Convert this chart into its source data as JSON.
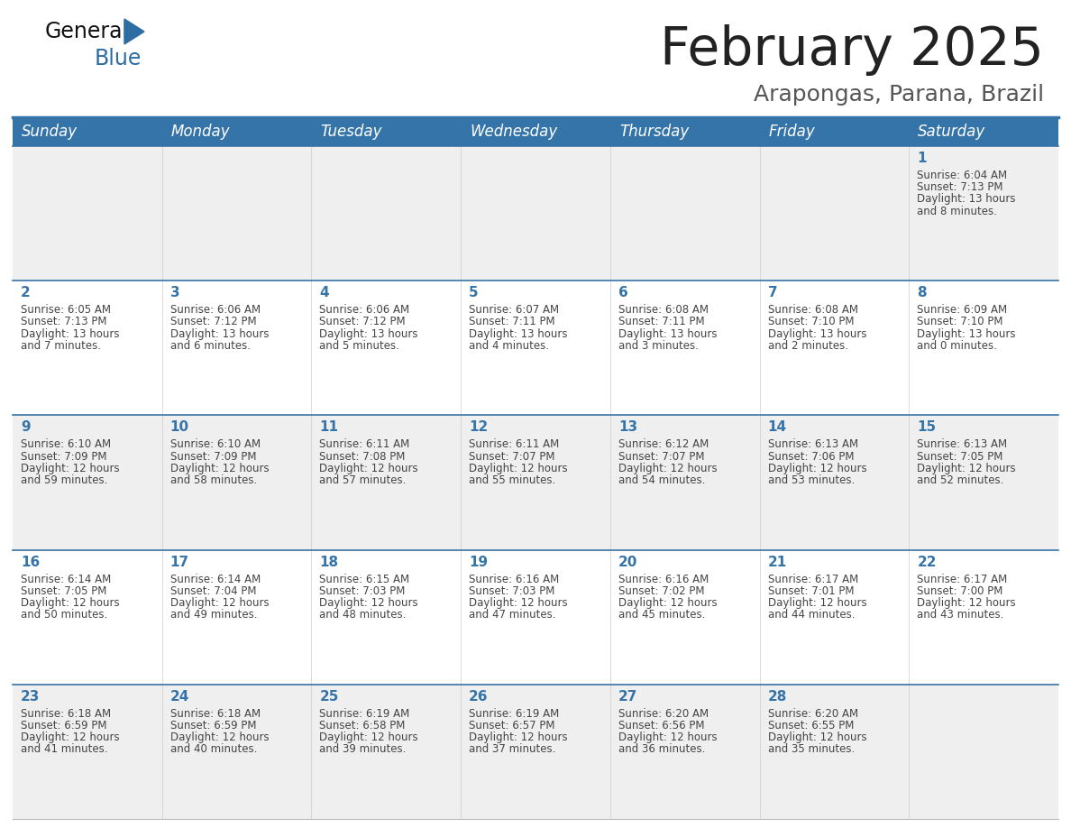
{
  "title": "February 2025",
  "subtitle": "Arapongas, Parana, Brazil",
  "header_color": "#3574a8",
  "header_text_color": "#ffffff",
  "cell_bg_even": "#efefef",
  "cell_bg_odd": "#ffffff",
  "day_headers": [
    "Sunday",
    "Monday",
    "Tuesday",
    "Wednesday",
    "Thursday",
    "Friday",
    "Saturday"
  ],
  "days": [
    {
      "day": 1,
      "col": 6,
      "row": 0,
      "sunrise": "6:04 AM",
      "sunset": "7:13 PM",
      "daylight": "13 hours and 8 minutes."
    },
    {
      "day": 2,
      "col": 0,
      "row": 1,
      "sunrise": "6:05 AM",
      "sunset": "7:13 PM",
      "daylight": "13 hours and 7 minutes."
    },
    {
      "day": 3,
      "col": 1,
      "row": 1,
      "sunrise": "6:06 AM",
      "sunset": "7:12 PM",
      "daylight": "13 hours and 6 minutes."
    },
    {
      "day": 4,
      "col": 2,
      "row": 1,
      "sunrise": "6:06 AM",
      "sunset": "7:12 PM",
      "daylight": "13 hours and 5 minutes."
    },
    {
      "day": 5,
      "col": 3,
      "row": 1,
      "sunrise": "6:07 AM",
      "sunset": "7:11 PM",
      "daylight": "13 hours and 4 minutes."
    },
    {
      "day": 6,
      "col": 4,
      "row": 1,
      "sunrise": "6:08 AM",
      "sunset": "7:11 PM",
      "daylight": "13 hours and 3 minutes."
    },
    {
      "day": 7,
      "col": 5,
      "row": 1,
      "sunrise": "6:08 AM",
      "sunset": "7:10 PM",
      "daylight": "13 hours and 2 minutes."
    },
    {
      "day": 8,
      "col": 6,
      "row": 1,
      "sunrise": "6:09 AM",
      "sunset": "7:10 PM",
      "daylight": "13 hours and 0 minutes."
    },
    {
      "day": 9,
      "col": 0,
      "row": 2,
      "sunrise": "6:10 AM",
      "sunset": "7:09 PM",
      "daylight": "12 hours and 59 minutes."
    },
    {
      "day": 10,
      "col": 1,
      "row": 2,
      "sunrise": "6:10 AM",
      "sunset": "7:09 PM",
      "daylight": "12 hours and 58 minutes."
    },
    {
      "day": 11,
      "col": 2,
      "row": 2,
      "sunrise": "6:11 AM",
      "sunset": "7:08 PM",
      "daylight": "12 hours and 57 minutes."
    },
    {
      "day": 12,
      "col": 3,
      "row": 2,
      "sunrise": "6:11 AM",
      "sunset": "7:07 PM",
      "daylight": "12 hours and 55 minutes."
    },
    {
      "day": 13,
      "col": 4,
      "row": 2,
      "sunrise": "6:12 AM",
      "sunset": "7:07 PM",
      "daylight": "12 hours and 54 minutes."
    },
    {
      "day": 14,
      "col": 5,
      "row": 2,
      "sunrise": "6:13 AM",
      "sunset": "7:06 PM",
      "daylight": "12 hours and 53 minutes."
    },
    {
      "day": 15,
      "col": 6,
      "row": 2,
      "sunrise": "6:13 AM",
      "sunset": "7:05 PM",
      "daylight": "12 hours and 52 minutes."
    },
    {
      "day": 16,
      "col": 0,
      "row": 3,
      "sunrise": "6:14 AM",
      "sunset": "7:05 PM",
      "daylight": "12 hours and 50 minutes."
    },
    {
      "day": 17,
      "col": 1,
      "row": 3,
      "sunrise": "6:14 AM",
      "sunset": "7:04 PM",
      "daylight": "12 hours and 49 minutes."
    },
    {
      "day": 18,
      "col": 2,
      "row": 3,
      "sunrise": "6:15 AM",
      "sunset": "7:03 PM",
      "daylight": "12 hours and 48 minutes."
    },
    {
      "day": 19,
      "col": 3,
      "row": 3,
      "sunrise": "6:16 AM",
      "sunset": "7:03 PM",
      "daylight": "12 hours and 47 minutes."
    },
    {
      "day": 20,
      "col": 4,
      "row": 3,
      "sunrise": "6:16 AM",
      "sunset": "7:02 PM",
      "daylight": "12 hours and 45 minutes."
    },
    {
      "day": 21,
      "col": 5,
      "row": 3,
      "sunrise": "6:17 AM",
      "sunset": "7:01 PM",
      "daylight": "12 hours and 44 minutes."
    },
    {
      "day": 22,
      "col": 6,
      "row": 3,
      "sunrise": "6:17 AM",
      "sunset": "7:00 PM",
      "daylight": "12 hours and 43 minutes."
    },
    {
      "day": 23,
      "col": 0,
      "row": 4,
      "sunrise": "6:18 AM",
      "sunset": "6:59 PM",
      "daylight": "12 hours and 41 minutes."
    },
    {
      "day": 24,
      "col": 1,
      "row": 4,
      "sunrise": "6:18 AM",
      "sunset": "6:59 PM",
      "daylight": "12 hours and 40 minutes."
    },
    {
      "day": 25,
      "col": 2,
      "row": 4,
      "sunrise": "6:19 AM",
      "sunset": "6:58 PM",
      "daylight": "12 hours and 39 minutes."
    },
    {
      "day": 26,
      "col": 3,
      "row": 4,
      "sunrise": "6:19 AM",
      "sunset": "6:57 PM",
      "daylight": "12 hours and 37 minutes."
    },
    {
      "day": 27,
      "col": 4,
      "row": 4,
      "sunrise": "6:20 AM",
      "sunset": "6:56 PM",
      "daylight": "12 hours and 36 minutes."
    },
    {
      "day": 28,
      "col": 5,
      "row": 4,
      "sunrise": "6:20 AM",
      "sunset": "6:55 PM",
      "daylight": "12 hours and 35 minutes."
    }
  ],
  "line_color": "#3574a8",
  "text_color": "#444444",
  "day_num_color": "#3574a8",
  "title_fontsize": 42,
  "subtitle_fontsize": 18,
  "header_fontsize": 12,
  "day_num_fontsize": 11,
  "cell_text_fontsize": 8.5
}
